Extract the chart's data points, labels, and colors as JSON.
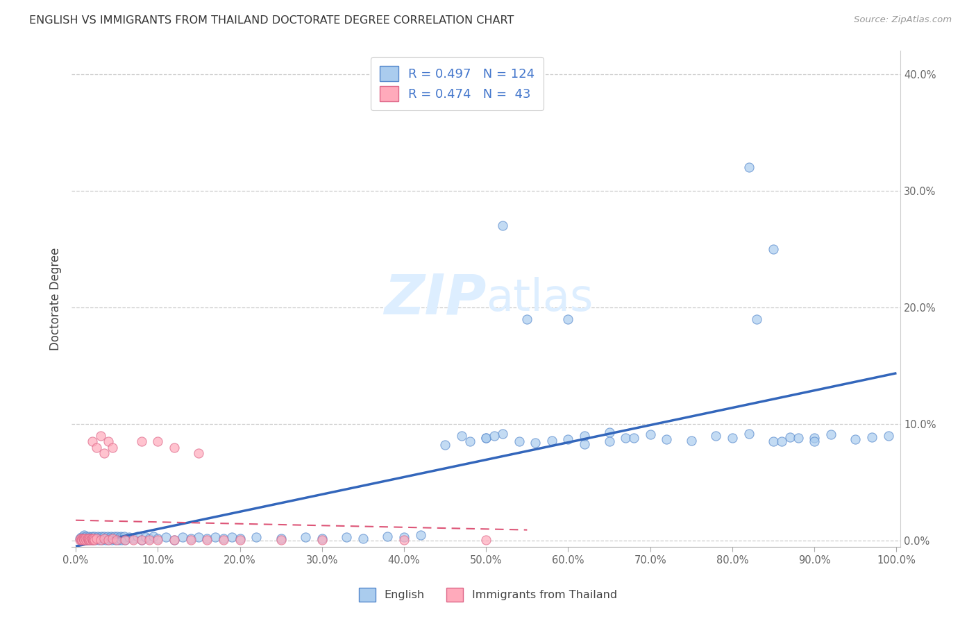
{
  "title": "ENGLISH VS IMMIGRANTS FROM THAILAND DOCTORATE DEGREE CORRELATION CHART",
  "source": "Source: ZipAtlas.com",
  "ylabel": "Doctorate Degree",
  "xlabel": "",
  "xlim": [
    -0.005,
    1.005
  ],
  "ylim": [
    -0.005,
    0.42
  ],
  "xticks": [
    0.0,
    0.1,
    0.2,
    0.3,
    0.4,
    0.5,
    0.6,
    0.7,
    0.8,
    0.9,
    1.0
  ],
  "yticks": [
    0.0,
    0.1,
    0.2,
    0.3,
    0.4
  ],
  "ytick_labels": [
    "0.0%",
    "10.0%",
    "20.0%",
    "30.0%",
    "40.0%"
  ],
  "xtick_labels": [
    "0.0%",
    "10.0%",
    "20.0%",
    "30.0%",
    "40.0%",
    "50.0%",
    "60.0%",
    "70.0%",
    "80.0%",
    "90.0%",
    "100.0%"
  ],
  "legend_label1": "English",
  "legend_label2": "Immigrants from Thailand",
  "r1": 0.497,
  "n1": 124,
  "r2": 0.474,
  "n2": 43,
  "color_english_face": "#aaccee",
  "color_english_edge": "#5588cc",
  "color_thailand_face": "#ffaabb",
  "color_thailand_edge": "#dd6688",
  "color_english_line": "#3366bb",
  "color_thailand_line": "#dd5577",
  "color_text_blue": "#4477cc",
  "watermark_color": "#ddeeff",
  "background": "#ffffff",
  "english_x": [
    0.005,
    0.007,
    0.008,
    0.009,
    0.01,
    0.01,
    0.01,
    0.012,
    0.013,
    0.014,
    0.015,
    0.015,
    0.016,
    0.017,
    0.018,
    0.019,
    0.02,
    0.02,
    0.021,
    0.022,
    0.023,
    0.024,
    0.025,
    0.026,
    0.027,
    0.028,
    0.029,
    0.03,
    0.031,
    0.032,
    0.033,
    0.034,
    0.035,
    0.036,
    0.037,
    0.038,
    0.039,
    0.04,
    0.041,
    0.042,
    0.043,
    0.044,
    0.045,
    0.046,
    0.047,
    0.048,
    0.049,
    0.05,
    0.051,
    0.052,
    0.053,
    0.054,
    0.055,
    0.056,
    0.057,
    0.058,
    0.059,
    0.06,
    0.065,
    0.07,
    0.075,
    0.08,
    0.085,
    0.09,
    0.095,
    0.1,
    0.11,
    0.12,
    0.13,
    0.14,
    0.15,
    0.16,
    0.17,
    0.18,
    0.19,
    0.2,
    0.22,
    0.25,
    0.28,
    0.3,
    0.33,
    0.35,
    0.38,
    0.4,
    0.42,
    0.45,
    0.47,
    0.5,
    0.52,
    0.54,
    0.56,
    0.58,
    0.6,
    0.62,
    0.65,
    0.67,
    0.7,
    0.72,
    0.75,
    0.78,
    0.8,
    0.82,
    0.85,
    0.87,
    0.9,
    0.92,
    0.95,
    0.97,
    0.99,
    0.5,
    0.52,
    0.55,
    0.48,
    0.51,
    0.6,
    0.62,
    0.65,
    0.68,
    0.82,
    0.85,
    0.88,
    0.9,
    0.83,
    0.86
  ],
  "english_y": [
    0.002,
    0.003,
    0.001,
    0.004,
    0.002,
    0.005,
    0.003,
    0.002,
    0.004,
    0.001,
    0.003,
    0.002,
    0.004,
    0.001,
    0.003,
    0.002,
    0.004,
    0.001,
    0.003,
    0.002,
    0.004,
    0.001,
    0.003,
    0.002,
    0.004,
    0.001,
    0.003,
    0.002,
    0.004,
    0.001,
    0.003,
    0.002,
    0.004,
    0.001,
    0.003,
    0.002,
    0.004,
    0.001,
    0.003,
    0.002,
    0.004,
    0.001,
    0.003,
    0.002,
    0.004,
    0.001,
    0.003,
    0.002,
    0.004,
    0.001,
    0.003,
    0.002,
    0.004,
    0.001,
    0.003,
    0.002,
    0.004,
    0.001,
    0.003,
    0.002,
    0.004,
    0.001,
    0.003,
    0.002,
    0.004,
    0.002,
    0.003,
    0.001,
    0.003,
    0.002,
    0.003,
    0.002,
    0.003,
    0.002,
    0.003,
    0.002,
    0.003,
    0.002,
    0.003,
    0.002,
    0.003,
    0.002,
    0.004,
    0.003,
    0.005,
    0.082,
    0.09,
    0.088,
    0.092,
    0.085,
    0.084,
    0.086,
    0.087,
    0.083,
    0.093,
    0.088,
    0.091,
    0.087,
    0.086,
    0.09,
    0.088,
    0.092,
    0.085,
    0.089,
    0.088,
    0.091,
    0.087,
    0.089,
    0.09,
    0.088,
    0.27,
    0.19,
    0.085,
    0.09,
    0.19,
    0.09,
    0.085,
    0.088,
    0.32,
    0.25,
    0.088,
    0.085,
    0.19,
    0.085
  ],
  "thailand_x": [
    0.005,
    0.006,
    0.007,
    0.008,
    0.008,
    0.009,
    0.01,
    0.01,
    0.01,
    0.012,
    0.013,
    0.014,
    0.015,
    0.015,
    0.016,
    0.017,
    0.018,
    0.019,
    0.02,
    0.02,
    0.021,
    0.022,
    0.023,
    0.025,
    0.03,
    0.035,
    0.04,
    0.045,
    0.05,
    0.06,
    0.07,
    0.08,
    0.09,
    0.1,
    0.12,
    0.14,
    0.16,
    0.18,
    0.2,
    0.25,
    0.3,
    0.4,
    0.5
  ],
  "thailand_y": [
    0.001,
    0.002,
    0.001,
    0.002,
    0.001,
    0.002,
    0.001,
    0.002,
    0.001,
    0.002,
    0.001,
    0.002,
    0.001,
    0.002,
    0.001,
    0.002,
    0.001,
    0.002,
    0.001,
    0.002,
    0.001,
    0.002,
    0.001,
    0.002,
    0.001,
    0.002,
    0.001,
    0.002,
    0.001,
    0.001,
    0.001,
    0.001,
    0.001,
    0.001,
    0.001,
    0.001,
    0.001,
    0.001,
    0.001,
    0.001,
    0.001,
    0.001,
    0.001
  ],
  "thailand_x_high": [
    0.02,
    0.025,
    0.03,
    0.035,
    0.04,
    0.045,
    0.08,
    0.1,
    0.12,
    0.15
  ],
  "thailand_y_high": [
    0.085,
    0.08,
    0.09,
    0.075,
    0.085,
    0.08,
    0.085,
    0.085,
    0.08,
    0.075
  ]
}
